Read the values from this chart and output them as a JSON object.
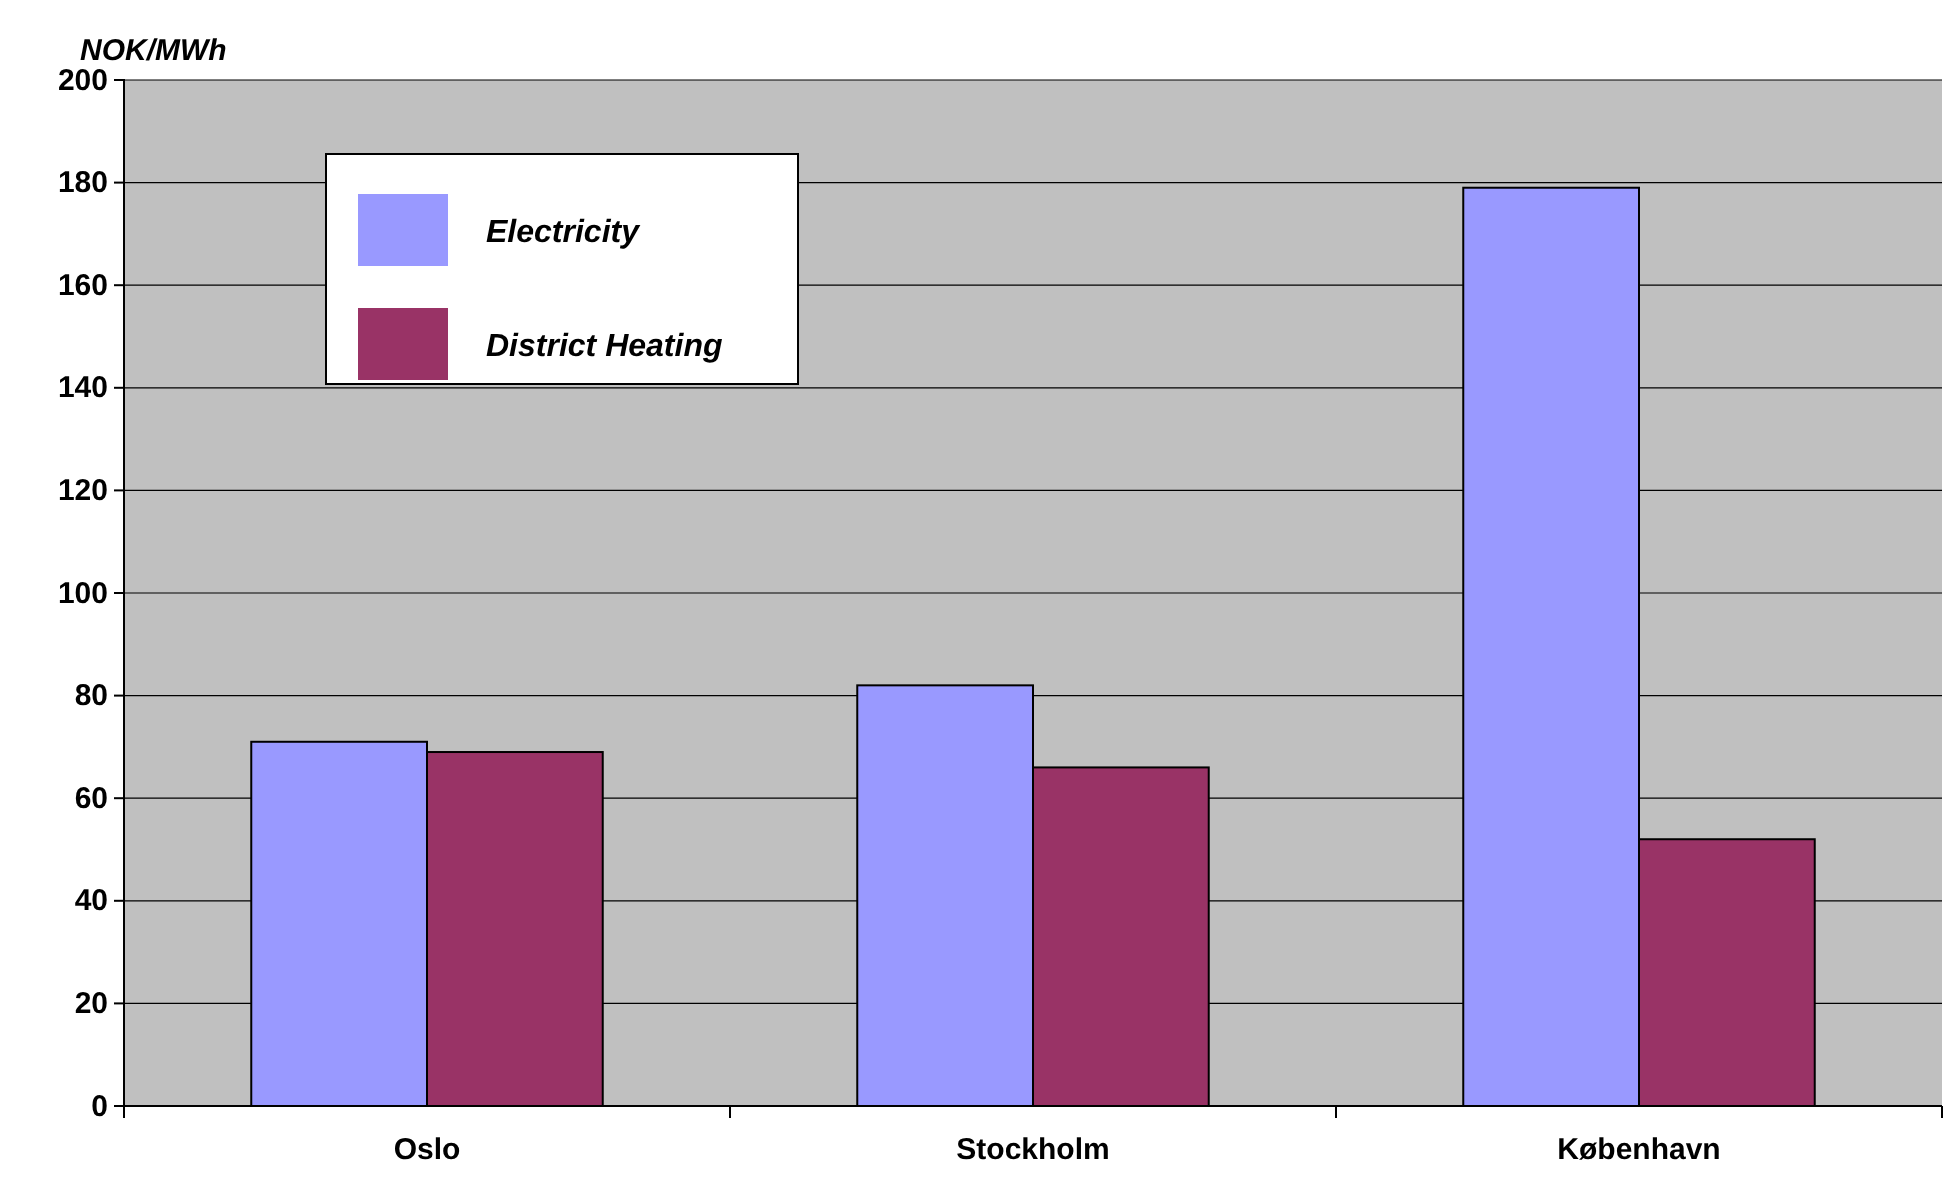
{
  "chart_data": {
    "type": "bar",
    "ylabel": "NOK/MWh",
    "categories": [
      "Oslo",
      "Stockholm",
      "København"
    ],
    "series": [
      {
        "name": "Electricity",
        "color": "#9999ff",
        "values": [
          71,
          82,
          179
        ]
      },
      {
        "name": "District Heating",
        "color": "#993366",
        "values": [
          69,
          66,
          52
        ]
      }
    ],
    "ylim": [
      0,
      200
    ],
    "yticks": [
      0,
      20,
      40,
      60,
      80,
      100,
      120,
      140,
      160,
      180,
      200
    ],
    "grid": "y",
    "legend": "top left"
  }
}
